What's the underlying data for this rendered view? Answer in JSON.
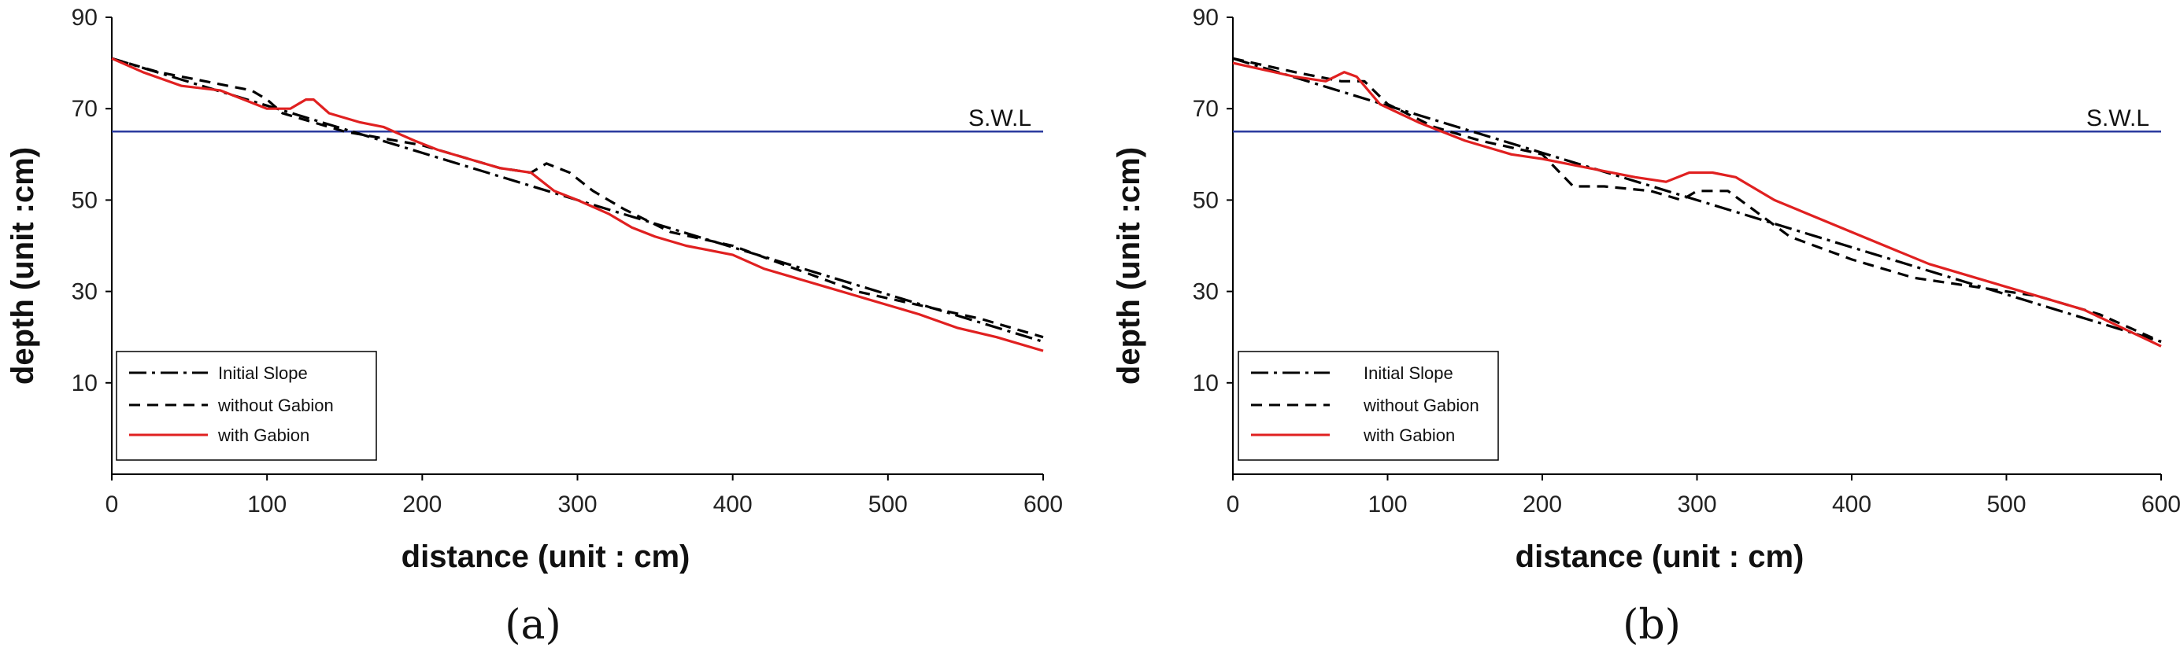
{
  "chart_data": [
    {
      "type": "line",
      "panel_label": "(a)",
      "xlabel": "distance (unit : cm)",
      "ylabel": "depth (unit :cm)",
      "xlim": [
        0,
        600
      ],
      "ylim": [
        -10,
        90
      ],
      "x_ticks": [
        "0",
        "100",
        "200",
        "300",
        "400",
        "500",
        "600"
      ],
      "y_ticks": [
        "10",
        "30",
        "50",
        "70",
        "90"
      ],
      "grid": false,
      "legend_position": "bottom-left",
      "annotation": {
        "text": "S.W.L",
        "y": 65
      },
      "series": [
        {
          "name": "Initial Slope",
          "style": "dash-dot",
          "color": "#000000",
          "points": [
            [
              0,
              81
            ],
            [
              600,
              19
            ]
          ]
        },
        {
          "name": "without Gabion",
          "style": "dashed",
          "color": "#000000",
          "points": [
            [
              0,
              81
            ],
            [
              30,
              78
            ],
            [
              60,
              76
            ],
            [
              90,
              74
            ],
            [
              100,
              72
            ],
            [
              110,
              69
            ],
            [
              150,
              65
            ],
            [
              200,
              62
            ],
            [
              230,
              59
            ],
            [
              250,
              57
            ],
            [
              270,
              56
            ],
            [
              280,
              58
            ],
            [
              295,
              56
            ],
            [
              310,
              52
            ],
            [
              330,
              48
            ],
            [
              360,
              43
            ],
            [
              400,
              40
            ],
            [
              440,
              35
            ],
            [
              480,
              30
            ],
            [
              520,
              27
            ],
            [
              560,
              24
            ],
            [
              600,
              20
            ]
          ]
        },
        {
          "name": "with Gabion",
          "style": "solid",
          "color": "#e02020",
          "points": [
            [
              0,
              81
            ],
            [
              20,
              78
            ],
            [
              45,
              75
            ],
            [
              70,
              74
            ],
            [
              100,
              70
            ],
            [
              115,
              70
            ],
            [
              125,
              72
            ],
            [
              130,
              72
            ],
            [
              140,
              69
            ],
            [
              160,
              67
            ],
            [
              175,
              66
            ],
            [
              195,
              63
            ],
            [
              210,
              61
            ],
            [
              230,
              59
            ],
            [
              250,
              57
            ],
            [
              270,
              56
            ],
            [
              285,
              52
            ],
            [
              300,
              50
            ],
            [
              320,
              47
            ],
            [
              335,
              44
            ],
            [
              350,
              42
            ],
            [
              370,
              40
            ],
            [
              400,
              38
            ],
            [
              420,
              35
            ],
            [
              440,
              33
            ],
            [
              460,
              31
            ],
            [
              480,
              29
            ],
            [
              500,
              27
            ],
            [
              520,
              25
            ],
            [
              545,
              22
            ],
            [
              570,
              20
            ],
            [
              600,
              17
            ]
          ]
        }
      ]
    },
    {
      "type": "line",
      "panel_label": "(b)",
      "xlabel": "distance (unit : cm)",
      "ylabel": "depth (unit :cm)",
      "xlim": [
        0,
        600
      ],
      "ylim": [
        -10,
        90
      ],
      "x_ticks": [
        "0",
        "100",
        "200",
        "300",
        "400",
        "500",
        "600"
      ],
      "y_ticks": [
        "10",
        "30",
        "50",
        "70",
        "90"
      ],
      "grid": false,
      "legend_position": "bottom-left",
      "annotation": {
        "text": "S.W.L",
        "y": 65
      },
      "series": [
        {
          "name": "Initial Slope",
          "style": "dash-dot",
          "color": "#000000",
          "points": [
            [
              0,
              81
            ],
            [
              600,
              19
            ]
          ]
        },
        {
          "name": "without Gabion",
          "style": "dashed",
          "color": "#000000",
          "points": [
            [
              0,
              81
            ],
            [
              40,
              78
            ],
            [
              70,
              76
            ],
            [
              85,
              76
            ],
            [
              100,
              71
            ],
            [
              130,
              66
            ],
            [
              160,
              63
            ],
            [
              200,
              60
            ],
            [
              220,
              53
            ],
            [
              240,
              53
            ],
            [
              270,
              52
            ],
            [
              290,
              50
            ],
            [
              300,
              52
            ],
            [
              320,
              52
            ],
            [
              340,
              47
            ],
            [
              360,
              42
            ],
            [
              400,
              37
            ],
            [
              440,
              33
            ],
            [
              480,
              31
            ],
            [
              520,
              29
            ],
            [
              560,
              25
            ],
            [
              600,
              19
            ]
          ]
        },
        {
          "name": "with Gabion",
          "style": "solid",
          "color": "#e02020",
          "points": [
            [
              0,
              80
            ],
            [
              40,
              77
            ],
            [
              60,
              76
            ],
            [
              72,
              78
            ],
            [
              80,
              77
            ],
            [
              95,
              71
            ],
            [
              120,
              67
            ],
            [
              150,
              63
            ],
            [
              180,
              60
            ],
            [
              200,
              59
            ],
            [
              230,
              57
            ],
            [
              260,
              55
            ],
            [
              280,
              54
            ],
            [
              295,
              56
            ],
            [
              310,
              56
            ],
            [
              325,
              55
            ],
            [
              350,
              50
            ],
            [
              400,
              43
            ],
            [
              450,
              36
            ],
            [
              500,
              31
            ],
            [
              550,
              26
            ],
            [
              600,
              18
            ]
          ]
        }
      ]
    }
  ],
  "legend": [
    {
      "label": "Initial Slope",
      "style": "dash-dot"
    },
    {
      "label": "without Gabion",
      "style": "dashed"
    },
    {
      "label": "with Gabion",
      "style": "solid"
    }
  ]
}
